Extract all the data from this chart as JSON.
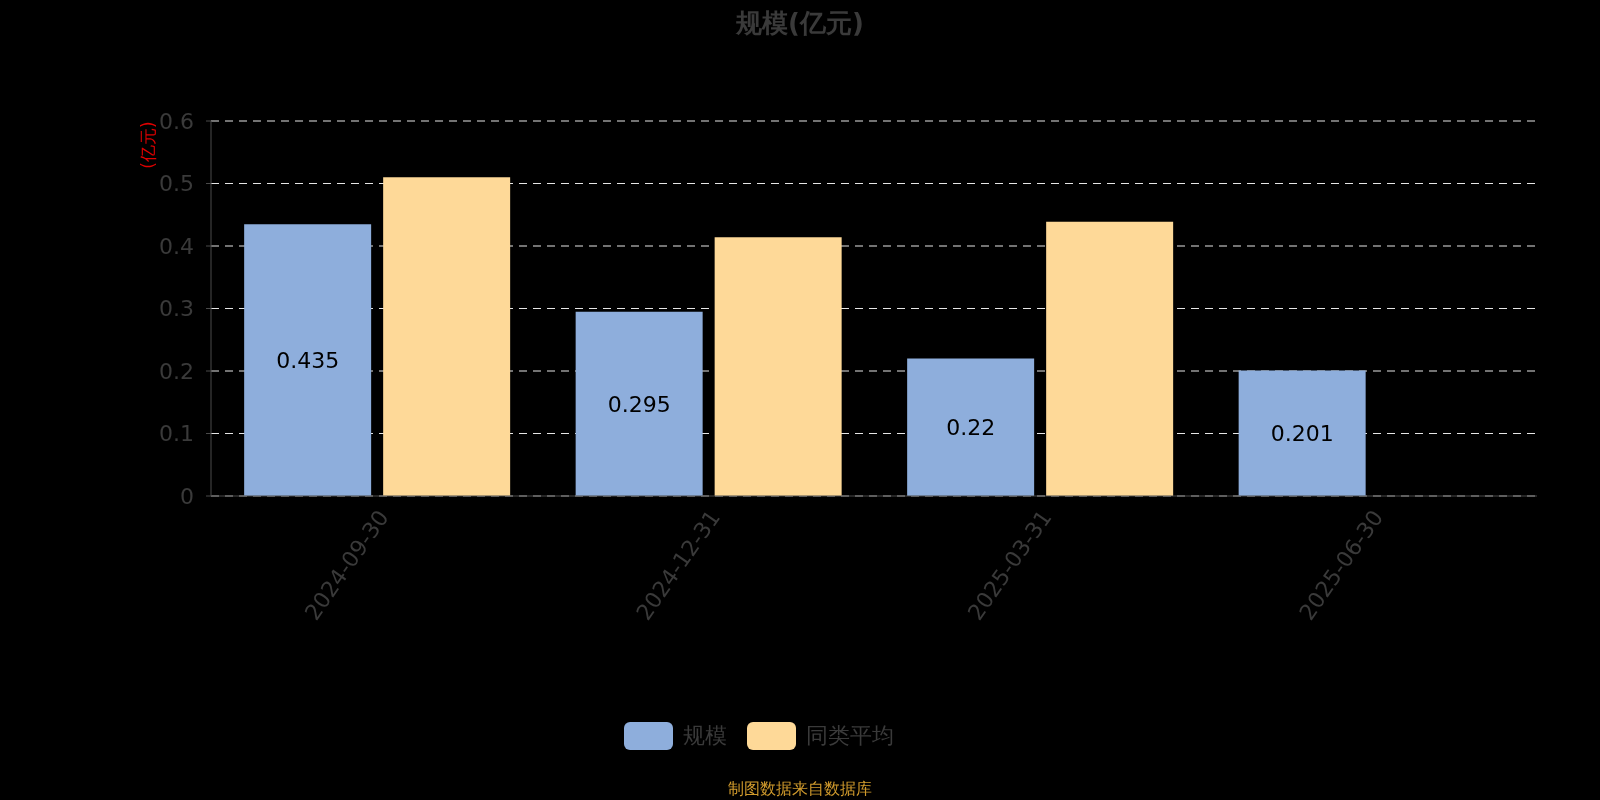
{
  "chart_data": {
    "type": "bar",
    "title": "规模(亿元)",
    "ylabel": "(亿元)",
    "categories": [
      "2024-09-30",
      "2024-12-31",
      "2025-03-31",
      "2025-06-30"
    ],
    "series": [
      {
        "name": "规模",
        "color": "#8eaedc",
        "values": [
          0.435,
          0.295,
          0.22,
          0.201
        ],
        "value_labels": [
          "0.435",
          "0.295",
          "0.22",
          "0.201"
        ]
      },
      {
        "name": "同类平均",
        "color": "#fed998",
        "values": [
          0.51,
          0.414,
          0.439,
          null
        ]
      }
    ],
    "ylim": [
      0,
      0.6
    ],
    "yticks": [
      0,
      0.1,
      0.2,
      0.3,
      0.4,
      0.5,
      0.6
    ],
    "grid": "y",
    "legend": "bottom",
    "annotations": [
      "制图数据来自数据库"
    ]
  }
}
